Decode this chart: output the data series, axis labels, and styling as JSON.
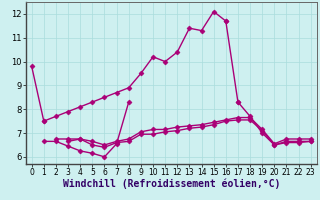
{
  "background_color": "#cef0f0",
  "line_color": "#aa0077",
  "marker": "D",
  "markersize": 2.5,
  "linewidth": 1.0,
  "xlabel": "Windchill (Refroidissement éolien,°C)",
  "xlabel_fontsize": 7,
  "tick_fontsize": 6,
  "xlim": [
    -0.5,
    23.5
  ],
  "ylim": [
    5.7,
    12.5
  ],
  "yticks": [
    6,
    7,
    8,
    9,
    10,
    11,
    12
  ],
  "xticks": [
    0,
    1,
    2,
    3,
    4,
    5,
    6,
    7,
    8,
    9,
    10,
    11,
    12,
    13,
    14,
    15,
    16,
    17,
    18,
    19,
    20,
    21,
    22,
    23
  ],
  "series": [
    {
      "x": [
        0,
        1
      ],
      "y": [
        9.8,
        7.5
      ]
    },
    {
      "x": [
        1,
        2,
        3,
        4,
        5,
        6,
        7,
        8,
        9,
        10,
        11,
        12,
        13,
        14,
        15,
        16
      ],
      "y": [
        7.5,
        7.7,
        7.9,
        8.1,
        8.3,
        8.5,
        8.7,
        8.9,
        9.5,
        10.2,
        10.0,
        10.4,
        11.4,
        11.3,
        12.1,
        11.7
      ]
    },
    {
      "x": [
        16,
        17
      ],
      "y": [
        11.7,
        8.3
      ]
    },
    {
      "x": [
        17,
        18,
        19,
        20,
        21,
        22,
        23
      ],
      "y": [
        8.3,
        7.7,
        7.0,
        6.5,
        6.6,
        6.6,
        6.65
      ]
    },
    {
      "x": [
        1,
        2,
        3,
        4,
        5,
        6,
        7,
        8
      ],
      "y": [
        6.65,
        6.65,
        6.45,
        6.25,
        6.15,
        6.0,
        6.55,
        8.3
      ]
    },
    {
      "x": [
        3,
        4,
        5,
        6,
        7,
        8,
        9,
        10,
        11,
        12,
        13,
        14,
        15,
        16,
        17,
        18,
        19,
        20,
        21,
        22,
        23
      ],
      "y": [
        6.65,
        6.75,
        6.5,
        6.4,
        6.6,
        6.65,
        6.95,
        6.95,
        7.05,
        7.1,
        7.2,
        7.25,
        7.35,
        7.5,
        7.55,
        7.55,
        7.1,
        6.5,
        6.65,
        6.65,
        6.65
      ]
    },
    {
      "x": [
        2,
        3,
        4,
        5,
        6,
        7,
        8,
        9,
        10,
        11,
        12,
        13,
        14,
        15,
        16,
        17,
        18,
        19,
        20,
        21,
        22,
        23
      ],
      "y": [
        6.75,
        6.75,
        6.75,
        6.65,
        6.5,
        6.65,
        6.75,
        7.05,
        7.15,
        7.15,
        7.25,
        7.3,
        7.35,
        7.45,
        7.55,
        7.65,
        7.65,
        7.15,
        6.55,
        6.75,
        6.75,
        6.75
      ]
    }
  ]
}
